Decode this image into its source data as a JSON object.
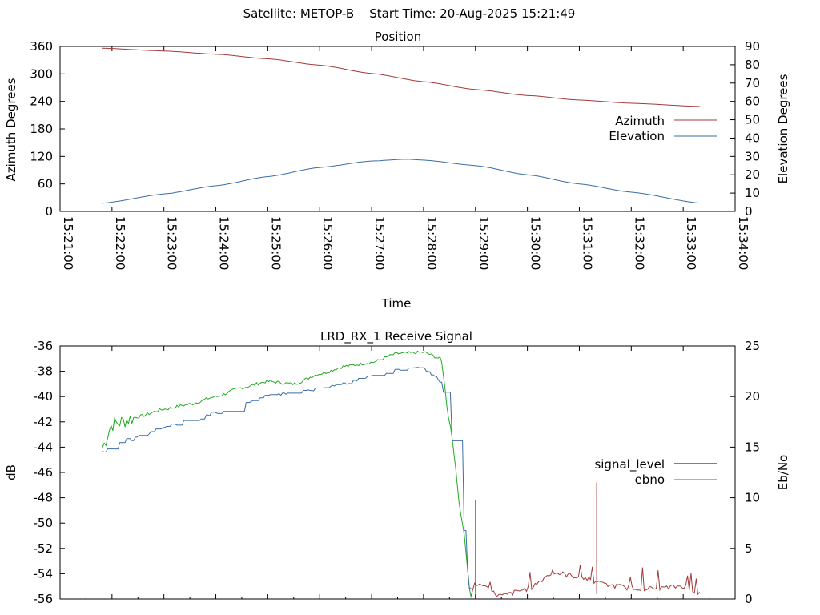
{
  "header": {
    "title": "Satellite: METOP-B    Start Time: 20-Aug-2025 15:21:49"
  },
  "chart_data": [
    {
      "type": "line",
      "title": "Position",
      "xlabel": "Time",
      "ylabel": "Azimuth Degrees",
      "y2label": "Elevation Degrees",
      "xlim": [
        "15:21:00",
        "15:34:00"
      ],
      "ylim": [
        0,
        360
      ],
      "y2lim": [
        0,
        90
      ],
      "x_tick_labels": [
        "15:21:00",
        "15:22:00",
        "15:23:00",
        "15:24:00",
        "15:25:00",
        "15:26:00",
        "15:27:00",
        "15:28:00",
        "15:29:00",
        "15:30:00",
        "15:31:00",
        "15:32:00",
        "15:33:00",
        "15:34:00"
      ],
      "y_tick_labels": [
        "0",
        "60",
        "120",
        "180",
        "240",
        "300",
        "360"
      ],
      "y2_tick_labels": [
        "0",
        "10",
        "20",
        "30",
        "40",
        "50",
        "60",
        "70",
        "80",
        "90"
      ],
      "legend_position": "right",
      "series": [
        {
          "name": "Azimuth",
          "axis": "left",
          "color": "#a33a3a",
          "x": [
            "15:21:49",
            "15:23:00",
            "15:24:00",
            "15:25:00",
            "15:26:00",
            "15:27:00",
            "15:28:00",
            "15:29:00",
            "15:30:00",
            "15:31:00",
            "15:32:00",
            "15:33:20"
          ],
          "values": [
            356,
            350,
            343,
            333,
            319,
            301,
            283,
            266,
            253,
            243,
            236,
            229
          ]
        },
        {
          "name": "Elevation",
          "axis": "right",
          "color": "#3a6ea5",
          "x": [
            "15:21:49",
            "15:23:00",
            "15:24:00",
            "15:25:00",
            "15:26:00",
            "15:27:00",
            "15:27:40",
            "15:28:00",
            "15:29:00",
            "15:30:00",
            "15:31:00",
            "15:32:00",
            "15:33:20"
          ],
          "values": [
            4.5,
            9.5,
            14,
            19,
            24,
            27.5,
            28.5,
            28,
            25,
            20,
            15,
            10.5,
            4.5
          ]
        }
      ]
    },
    {
      "type": "line",
      "title": "LRD_RX_1 Receive Signal",
      "ylabel": "dB",
      "y2label": "Eb/No",
      "xlim": [
        "15:21:00",
        "15:34:00"
      ],
      "ylim": [
        -56,
        -36
      ],
      "y2lim": [
        0,
        25
      ],
      "y_tick_labels": [
        "-56",
        "-54",
        "-52",
        "-50",
        "-48",
        "-46",
        "-44",
        "-42",
        "-40",
        "-38",
        "-36"
      ],
      "y2_tick_labels": [
        "0",
        "5",
        "10",
        "15",
        "20",
        "25"
      ],
      "legend_position": "right",
      "series": [
        {
          "name": "signal_level",
          "axis": "left",
          "color": "#22aa22",
          "x": [
            "15:21:49",
            "15:22:00",
            "15:22:30",
            "15:23:00",
            "15:23:30",
            "15:24:00",
            "15:24:30",
            "15:25:00",
            "15:25:30",
            "15:26:00",
            "15:26:30",
            "15:27:00",
            "15:27:30",
            "15:28:00",
            "15:28:20",
            "15:28:30",
            "15:28:45",
            "15:28:55"
          ],
          "values": [
            -44.0,
            -42.2,
            -41.6,
            -41.0,
            -40.6,
            -40.0,
            -39.3,
            -38.8,
            -39.0,
            -38.2,
            -37.6,
            -37.3,
            -36.6,
            -36.5,
            -37.0,
            -42.0,
            -50.0,
            -56.0
          ]
        },
        {
          "name": "ebno",
          "axis": "right",
          "color": "#3a6ea5",
          "x": [
            "15:21:49",
            "15:22:00",
            "15:22:30",
            "15:23:00",
            "15:23:30",
            "15:24:00",
            "15:24:30",
            "15:25:00",
            "15:25:30",
            "15:26:00",
            "15:26:30",
            "15:27:00",
            "15:27:30",
            "15:28:00",
            "15:28:20",
            "15:28:30",
            "15:28:45",
            "15:28:55"
          ],
          "values": [
            14.5,
            15.2,
            16.0,
            17.0,
            17.6,
            18.4,
            19.3,
            20.2,
            20.3,
            20.8,
            21.3,
            22.0,
            22.7,
            22.8,
            21.5,
            17.0,
            8.0,
            0
          ]
        },
        {
          "name": "",
          "axis": "right",
          "color": "#a33a3a",
          "x": [
            "15:28:55",
            "15:29:00",
            "15:29:30",
            "15:30:00",
            "15:30:30",
            "15:31:00",
            "15:31:30",
            "15:32:00",
            "15:32:30",
            "15:33:00",
            "15:33:20"
          ],
          "values": [
            0.5,
            1.5,
            0.3,
            1.0,
            2.6,
            2.2,
            1.4,
            1.1,
            1.0,
            1.3,
            0.5
          ]
        }
      ],
      "spikes": [
        {
          "x": "15:29:00",
          "value": 9.8
        },
        {
          "x": "15:31:20",
          "value": 11.5
        }
      ]
    }
  ]
}
